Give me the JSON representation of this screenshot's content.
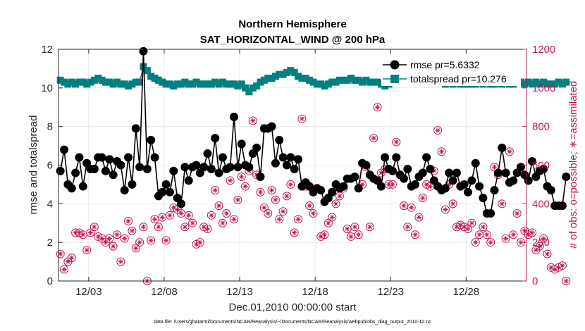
{
  "chart_data": {
    "type": "line",
    "title": "Northern Hemisphere",
    "subtitle": "SAT_HORIZONTAL_WIND @ 200 hPa",
    "xlabel": "Dec.01,2010 00:00:00 start",
    "ylabel": "rmse and totalspread",
    "y2label": "# of obs: o=possible; ∗=assimilated",
    "footer": "data file: /Users/gharamti/Documents/NCAR/Reanalysis/~/Documents/NCAR/Reanalysis/webpub/obs_diag_output_2010-12.nc",
    "xlim": [
      1.0,
      32.0
    ],
    "ylim": [
      0,
      12
    ],
    "y2lim": [
      0,
      1200
    ],
    "grid": true,
    "legend_position": "top-right",
    "x_ticks": [
      3,
      8,
      13,
      18,
      23,
      28
    ],
    "x_tick_labels": [
      "12/03",
      "12/08",
      "12/13",
      "12/18",
      "12/23",
      "12/28"
    ],
    "y_ticks": [
      0,
      2,
      4,
      6,
      8,
      10,
      12
    ],
    "y_tick_labels": [
      "0",
      "2",
      "4",
      "6",
      "8",
      "10",
      "12"
    ],
    "y2_ticks": [
      0,
      200,
      400,
      600,
      800,
      1000,
      1200
    ],
    "y2_tick_labels": [
      "0",
      "200",
      "400",
      "600",
      "800",
      "1000",
      "1200"
    ],
    "colors": {
      "rmse": "#000000",
      "totalspread": "#008080",
      "obs": "#c2185b"
    },
    "series": [
      {
        "name": "rmse pr=5.6332",
        "axis": "left",
        "x_start": 1.125,
        "x_step": 0.25,
        "values": [
          5.7,
          6.8,
          5.0,
          4.8,
          5.6,
          6.4,
          4.9,
          6.1,
          5.8,
          5.8,
          6.4,
          6.4,
          5.7,
          6.3,
          5.5,
          6.2,
          6.0,
          4.7,
          6.4,
          5.0,
          7.9,
          5.9,
          11.9,
          5.8,
          7.3,
          6.4,
          4.4,
          4.6,
          5.0,
          4.6,
          5.7,
          4.3,
          4.0,
          5.9,
          5.2,
          5.9,
          6.0,
          5.6,
          5.9,
          6.6,
          5.8,
          7.4,
          5.6,
          6.4,
          5.8,
          5.9,
          8.5,
          5.9,
          7.1,
          6.0,
          5.9,
          6.6,
          6.9,
          5.4,
          7.9,
          7.9,
          8.0,
          6.1,
          7.3,
          6.4,
          6.0,
          6.4,
          5.8,
          6.3,
          4.9,
          5.1,
          4.9,
          4.6,
          4.8,
          4.7,
          4.1,
          4.3,
          4.6,
          5.0,
          4.8,
          4.9,
          5.3,
          5.3,
          5.4,
          4.8,
          6.1,
          6.0,
          5.5,
          5.3,
          5.2,
          4.9,
          6.4,
          5.8,
          5.7,
          6.4,
          5.5,
          5.3,
          5.8,
          4.9,
          5.0,
          5.4,
          5.6,
          6.4,
          5.8,
          5.2,
          4.9,
          4.7,
          4.8,
          5.6,
          5.2,
          5.6,
          4.9,
          5.0,
          4.6,
          5.2,
          6.1,
          4.9,
          4.3,
          3.5,
          3.5,
          4.7,
          5.6,
          6.9,
          5.6,
          5.1,
          5.2,
          5.6,
          5.9,
          5.5,
          5.2,
          6.2,
          5.4,
          5.7,
          5.8,
          4.9,
          4.7,
          3.9,
          3.9,
          3.9,
          5.4
        ]
      },
      {
        "name": "totalspread pr=10.276",
        "axis": "left",
        "x_start": 1.125,
        "x_step": 0.25,
        "values": [
          10.4,
          10.3,
          10.2,
          10.3,
          10.2,
          10.3,
          10.3,
          10.2,
          10.3,
          10.4,
          10.5,
          10.4,
          10.3,
          10.3,
          10.2,
          10.3,
          10.2,
          10.2,
          10.1,
          10.2,
          10.3,
          10.3,
          11.1,
          10.9,
          10.6,
          10.5,
          10.4,
          10.3,
          10.2,
          10.2,
          10.1,
          10.2,
          10.2,
          10.3,
          10.2,
          10.2,
          10.3,
          10.2,
          10.2,
          10.2,
          10.2,
          10.3,
          10.2,
          10.3,
          10.2,
          10.2,
          10.2,
          10.1,
          10.2,
          10.0,
          9.8,
          10.0,
          10.1,
          10.3,
          10.4,
          10.5,
          10.5,
          10.6,
          10.7,
          10.7,
          10.8,
          10.9,
          10.8,
          10.6,
          10.5,
          10.5,
          10.4,
          10.3,
          10.2,
          10.2,
          10.1,
          10.2,
          10.3,
          10.3,
          10.4,
          10.4,
          10.4,
          10.5,
          10.4,
          10.4,
          10.3,
          10.4,
          10.3,
          10.3,
          10.3,
          10.2,
          10.1,
          10.2,
          10.3,
          10.3,
          10.4,
          10.5,
          10.4,
          10.3,
          10.4,
          10.4,
          10.5,
          10.4,
          10.3,
          10.5,
          10.3,
          10.3,
          10.2,
          10.3,
          10.2,
          10.3,
          10.2,
          10.2,
          10.2,
          10.2,
          10.2,
          10.3,
          10.2,
          10.3,
          10.2,
          10.2,
          10.3,
          10.2,
          10.3,
          10.2,
          10.2,
          10.3,
          10.3,
          10.2,
          10.3,
          10.2,
          10.3,
          10.2,
          10.3,
          10.2,
          10.2,
          10.2,
          10.3,
          10.2,
          10.3
        ]
      },
      {
        "name": "obs assimilated",
        "axis": "right",
        "x_start": 1.125,
        "x_step": 0.25,
        "values": [
          140,
          60,
          100,
          120,
          250,
          250,
          240,
          160,
          250,
          280,
          230,
          220,
          200,
          220,
          180,
          240,
          100,
          220,
          310,
          260,
          170,
          200,
          280,
          0,
          210,
          320,
          280,
          330,
          210,
          340,
          380,
          370,
          350,
          280,
          340,
          300,
          190,
          200,
          280,
          270,
          340,
          470,
          390,
          300,
          350,
          520,
          320,
          420,
          540,
          490,
          570,
          830,
          550,
          460,
          380,
          350,
          470,
          420,
          320,
          360,
          440,
          500,
          250,
          320,
          840,
          490,
          390,
          350,
          480,
          230,
          240,
          300,
          330,
          400,
          440,
          480,
          270,
          230,
          280,
          240,
          500,
          590,
          280,
          740,
          900,
          560,
          580,
          500,
          500,
          720,
          550,
          390,
          280,
          380,
          240,
          330,
          430,
          500,
          490,
          570,
          780,
          670,
          370,
          500,
          400,
          280,
          290,
          280,
          270,
          300,
          200,
          240,
          280,
          240,
          200,
          590,
          550,
          400,
          220,
          670,
          240,
          350,
          200,
          260,
          240,
          250,
          160,
          180,
          220,
          140,
          70,
          60,
          70,
          80,
          0
        ]
      }
    ]
  }
}
